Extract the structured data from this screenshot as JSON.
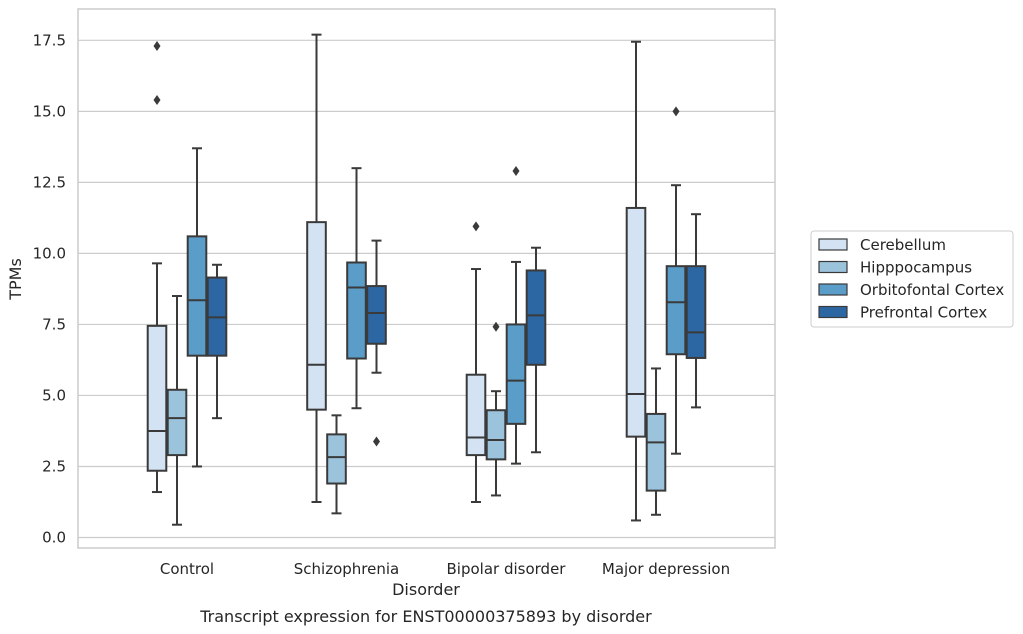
{
  "chart_data": {
    "type": "box",
    "caption": "Transcript expression for ENST00000375893 by disorder",
    "xlabel": "Disorder",
    "ylabel": "TPMs",
    "ylim": [
      -0.3,
      18.5
    ],
    "yticks": [
      0.0,
      2.5,
      5.0,
      7.5,
      10.0,
      12.5,
      15.0,
      17.5
    ],
    "ytick_labels": [
      "0.0",
      "2.5",
      "5.0",
      "7.5",
      "10.0",
      "12.5",
      "15.0",
      "17.5"
    ],
    "grid": "horizontal",
    "legend_position": "right",
    "categories": [
      "Control",
      "Schizophrenia",
      "Bipolar disorder",
      "Major depression"
    ],
    "series": [
      {
        "name": "Cerebellum",
        "color": "#d4e3f3",
        "boxes": [
          {
            "whisker_low": 1.6,
            "q1": 2.35,
            "median": 3.75,
            "q3": 7.45,
            "whisker_high": 9.65,
            "outliers": [
              15.4,
              17.3
            ]
          },
          {
            "whisker_low": 1.25,
            "q1": 4.5,
            "median": 6.08,
            "q3": 11.1,
            "whisker_high": 17.7,
            "outliers": []
          },
          {
            "whisker_low": 1.25,
            "q1": 2.9,
            "median": 3.52,
            "q3": 5.73,
            "whisker_high": 9.45,
            "outliers": [
              10.95
            ]
          },
          {
            "whisker_low": 0.6,
            "q1": 3.55,
            "median": 5.05,
            "q3": 11.6,
            "whisker_high": 17.45,
            "outliers": []
          }
        ]
      },
      {
        "name": "Hipppocampus",
        "color": "#9cc3dc",
        "boxes": [
          {
            "whisker_low": 0.45,
            "q1": 2.9,
            "median": 4.2,
            "q3": 5.2,
            "whisker_high": 8.5,
            "outliers": []
          },
          {
            "whisker_low": 0.85,
            "q1": 1.9,
            "median": 2.83,
            "q3": 3.63,
            "whisker_high": 4.3,
            "outliers": []
          },
          {
            "whisker_low": 1.48,
            "q1": 2.75,
            "median": 3.43,
            "q3": 4.48,
            "whisker_high": 5.15,
            "outliers": [
              7.42
            ]
          },
          {
            "whisker_low": 0.8,
            "q1": 1.65,
            "median": 3.35,
            "q3": 4.35,
            "whisker_high": 5.95,
            "outliers": []
          }
        ]
      },
      {
        "name": "Orbitofontal Cortex",
        "color": "#5a9dc9",
        "boxes": [
          {
            "whisker_low": 2.5,
            "q1": 6.4,
            "median": 8.35,
            "q3": 10.6,
            "whisker_high": 13.7,
            "outliers": []
          },
          {
            "whisker_low": 4.55,
            "q1": 6.3,
            "median": 8.8,
            "q3": 9.68,
            "whisker_high": 13.0,
            "outliers": []
          },
          {
            "whisker_low": 2.6,
            "q1": 4.0,
            "median": 5.52,
            "q3": 7.5,
            "whisker_high": 9.7,
            "outliers": [
              12.9
            ]
          },
          {
            "whisker_low": 2.95,
            "q1": 6.45,
            "median": 8.28,
            "q3": 9.55,
            "whisker_high": 12.4,
            "outliers": [
              15.0
            ]
          }
        ]
      },
      {
        "name": "Prefrontal Cortex",
        "color": "#2d67a3",
        "boxes": [
          {
            "whisker_low": 4.2,
            "q1": 6.4,
            "median": 7.75,
            "q3": 9.15,
            "whisker_high": 9.6,
            "outliers": []
          },
          {
            "whisker_low": 5.8,
            "q1": 6.82,
            "median": 7.9,
            "q3": 8.85,
            "whisker_high": 10.45,
            "outliers": [
              3.38
            ]
          },
          {
            "whisker_low": 3.0,
            "q1": 6.08,
            "median": 7.82,
            "q3": 9.4,
            "whisker_high": 10.2,
            "outliers": []
          },
          {
            "whisker_low": 4.58,
            "q1": 6.32,
            "median": 7.22,
            "q3": 9.55,
            "whisker_high": 11.38,
            "outliers": []
          }
        ]
      }
    ]
  }
}
